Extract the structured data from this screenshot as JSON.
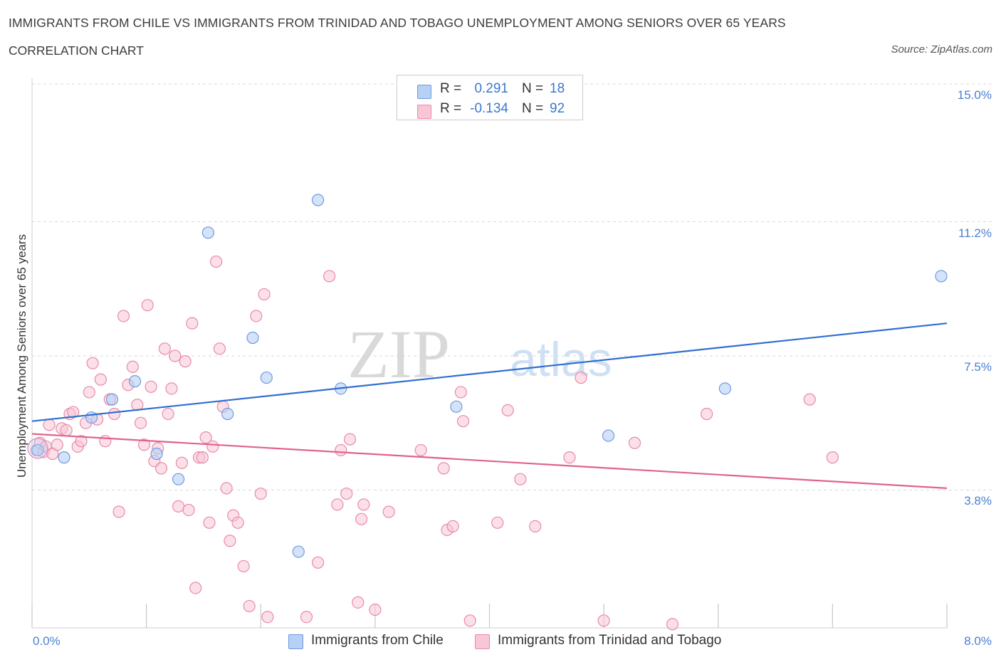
{
  "header": {
    "title": "IMMIGRANTS FROM CHILE VS IMMIGRANTS FROM TRINIDAD AND TOBAGO UNEMPLOYMENT AMONG SENIORS OVER 65 YEARS",
    "subtitle": "CORRELATION CHART",
    "source": "Source: ZipAtlas.com"
  },
  "legend_top": {
    "row1": {
      "r_label": "R =",
      "r_value": "0.291",
      "n_label": "N =",
      "n_value": "18"
    },
    "row2": {
      "r_label": "R =",
      "r_value": "-0.134",
      "n_label": "N =",
      "n_value": "92"
    }
  },
  "legend_bottom": {
    "chile": "Immigrants from Chile",
    "tt": "Immigrants from Trinidad and Tobago"
  },
  "watermark": {
    "zip": "ZIP",
    "atlas": "atlas"
  },
  "colors": {
    "chile_fill": "#b7d0f5",
    "chile_stroke": "#6e9be0",
    "chile_line": "#2f6fcf",
    "tt_fill": "#f8c6d6",
    "tt_stroke": "#e98aaa",
    "tt_line": "#e0628f",
    "tick_text": "#4a7fd0",
    "grid": "#d8d8d8"
  },
  "chart_data": {
    "type": "scatter",
    "ylabel": "Unemployment Among Seniors over 65 years",
    "xlim": [
      0,
      8
    ],
    "ylim": [
      0,
      15
    ],
    "x_tick_labels": [
      {
        "v": 0,
        "label": "0.0%"
      },
      {
        "v": 8,
        "label": "8.0%"
      }
    ],
    "y_ticks": [
      {
        "v": 3.8,
        "label": "3.8%"
      },
      {
        "v": 7.5,
        "label": "7.5%"
      },
      {
        "v": 11.2,
        "label": "11.2%"
      },
      {
        "v": 15.0,
        "label": "15.0%"
      }
    ],
    "series": [
      {
        "name": "Immigrants from Chile",
        "trend": [
          [
            0,
            5.7
          ],
          [
            8,
            8.4
          ]
        ],
        "points": [
          [
            0.05,
            4.9
          ],
          [
            0.28,
            4.7
          ],
          [
            0.52,
            5.8
          ],
          [
            0.7,
            6.3
          ],
          [
            0.9,
            6.8
          ],
          [
            1.09,
            4.8
          ],
          [
            1.28,
            4.1
          ],
          [
            1.54,
            10.9
          ],
          [
            1.71,
            5.9
          ],
          [
            1.93,
            8.0
          ],
          [
            2.05,
            6.9
          ],
          [
            2.33,
            2.1
          ],
          [
            2.5,
            11.8
          ],
          [
            2.7,
            6.6
          ],
          [
            3.71,
            6.1
          ],
          [
            5.04,
            5.3
          ],
          [
            6.06,
            6.6
          ],
          [
            7.95,
            9.7
          ]
        ]
      },
      {
        "name": "Immigrants from Trinidad and Tobago",
        "trend": [
          [
            0,
            5.35
          ],
          [
            8,
            3.85
          ]
        ],
        "points": [
          [
            0.04,
            4.9
          ],
          [
            0.07,
            5.1
          ],
          [
            0.1,
            4.85
          ],
          [
            0.12,
            5.0
          ],
          [
            0.15,
            5.6
          ],
          [
            0.18,
            4.8
          ],
          [
            0.22,
            5.05
          ],
          [
            0.26,
            5.5
          ],
          [
            0.3,
            5.45
          ],
          [
            0.33,
            5.9
          ],
          [
            0.36,
            5.95
          ],
          [
            0.4,
            5.0
          ],
          [
            0.43,
            5.15
          ],
          [
            0.47,
            5.65
          ],
          [
            0.5,
            6.5
          ],
          [
            0.53,
            7.3
          ],
          [
            0.57,
            5.75
          ],
          [
            0.6,
            6.85
          ],
          [
            0.64,
            5.15
          ],
          [
            0.68,
            6.3
          ],
          [
            0.72,
            5.9
          ],
          [
            0.76,
            3.2
          ],
          [
            0.8,
            8.6
          ],
          [
            0.84,
            6.7
          ],
          [
            0.88,
            7.2
          ],
          [
            0.92,
            6.15
          ],
          [
            0.95,
            5.65
          ],
          [
            0.98,
            5.05
          ],
          [
            1.01,
            8.9
          ],
          [
            1.04,
            6.65
          ],
          [
            1.07,
            4.6
          ],
          [
            1.1,
            4.95
          ],
          [
            1.13,
            4.4
          ],
          [
            1.16,
            7.7
          ],
          [
            1.19,
            5.9
          ],
          [
            1.22,
            6.6
          ],
          [
            1.25,
            7.5
          ],
          [
            1.28,
            3.35
          ],
          [
            1.31,
            4.55
          ],
          [
            1.34,
            7.35
          ],
          [
            1.37,
            3.25
          ],
          [
            1.4,
            8.4
          ],
          [
            1.43,
            1.1
          ],
          [
            1.46,
            4.7
          ],
          [
            1.49,
            4.7
          ],
          [
            1.52,
            5.25
          ],
          [
            1.55,
            2.9
          ],
          [
            1.58,
            5.0
          ],
          [
            1.61,
            10.1
          ],
          [
            1.64,
            7.7
          ],
          [
            1.67,
            6.1
          ],
          [
            1.7,
            3.85
          ],
          [
            1.73,
            2.4
          ],
          [
            1.76,
            3.1
          ],
          [
            1.8,
            2.9
          ],
          [
            1.85,
            1.7
          ],
          [
            1.9,
            0.6
          ],
          [
            1.96,
            8.6
          ],
          [
            2.0,
            3.7
          ],
          [
            2.03,
            9.2
          ],
          [
            2.06,
            0.3
          ],
          [
            2.4,
            0.3
          ],
          [
            2.5,
            1.8
          ],
          [
            2.6,
            9.7
          ],
          [
            2.67,
            3.4
          ],
          [
            2.7,
            4.9
          ],
          [
            2.75,
            3.7
          ],
          [
            2.78,
            5.2
          ],
          [
            2.85,
            0.7
          ],
          [
            2.88,
            3.0
          ],
          [
            2.9,
            3.4
          ],
          [
            3.0,
            0.5
          ],
          [
            3.12,
            3.2
          ],
          [
            3.4,
            4.9
          ],
          [
            3.6,
            4.4
          ],
          [
            3.63,
            2.7
          ],
          [
            3.68,
            2.8
          ],
          [
            3.75,
            6.5
          ],
          [
            3.77,
            5.7
          ],
          [
            3.83,
            0.2
          ],
          [
            4.07,
            2.9
          ],
          [
            4.16,
            6.0
          ],
          [
            4.27,
            4.1
          ],
          [
            4.4,
            2.8
          ],
          [
            4.7,
            4.7
          ],
          [
            4.8,
            6.9
          ],
          [
            5.0,
            0.2
          ],
          [
            5.27,
            5.1
          ],
          [
            5.6,
            0.1
          ],
          [
            5.9,
            5.9
          ],
          [
            6.8,
            6.3
          ],
          [
            7.0,
            4.7
          ]
        ]
      }
    ]
  }
}
